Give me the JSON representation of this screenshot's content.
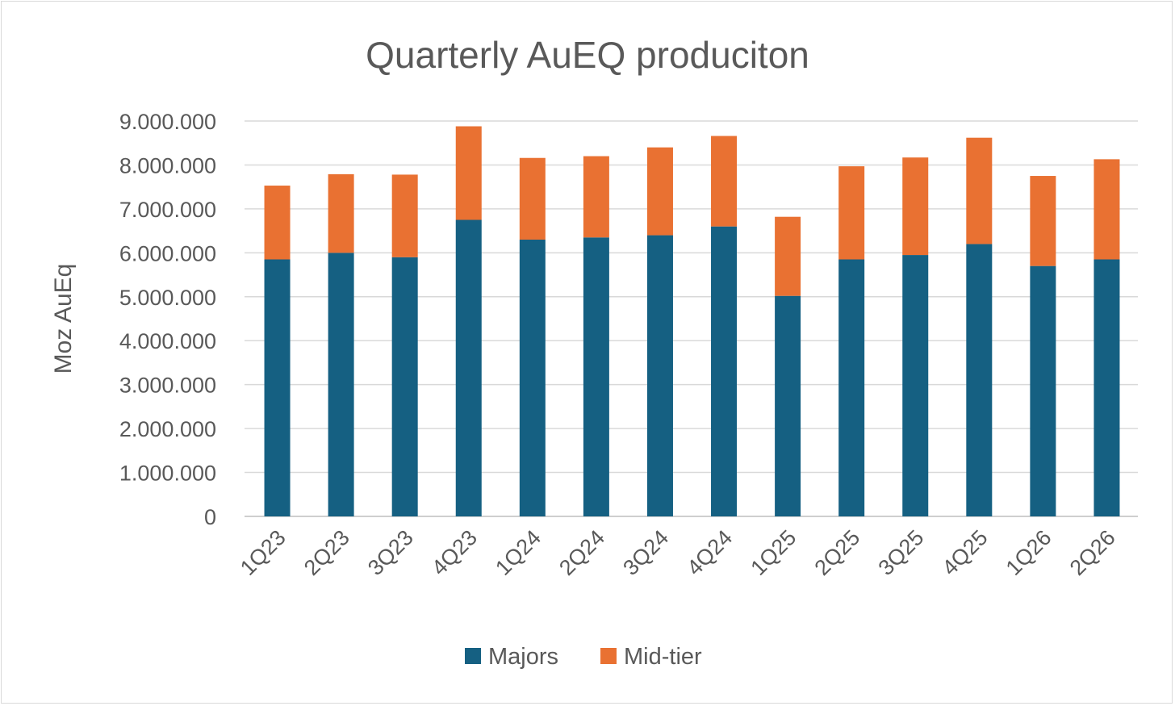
{
  "chart_data": {
    "type": "bar",
    "stacked": true,
    "title": "Quarterly AuEQ produciton",
    "xlabel": "",
    "ylabel": "Moz AuEq",
    "ylim": [
      0,
      9000000
    ],
    "yticks": [
      0,
      1000000,
      2000000,
      3000000,
      4000000,
      5000000,
      6000000,
      7000000,
      8000000,
      9000000
    ],
    "ytick_labels": [
      "0",
      "1.000.000",
      "2.000.000",
      "3.000.000",
      "4.000.000",
      "5.000.000",
      "6.000.000",
      "7.000.000",
      "8.000.000",
      "9.000.000"
    ],
    "grid": true,
    "legend_position": "bottom",
    "categories": [
      "1Q23",
      "2Q23",
      "3Q23",
      "4Q23",
      "1Q24",
      "2Q24",
      "3Q24",
      "4Q24",
      "1Q25",
      "2Q25",
      "3Q25",
      "4Q25",
      "1Q26",
      "2Q26"
    ],
    "series": [
      {
        "name": "Majors",
        "color": "#156082",
        "values": [
          5850000,
          6000000,
          5900000,
          6750000,
          6300000,
          6350000,
          6400000,
          6600000,
          5020000,
          5850000,
          5950000,
          6200000,
          5700000,
          5850000
        ]
      },
      {
        "name": "Mid-tier",
        "color": "#E97132",
        "values": [
          1680000,
          1790000,
          1880000,
          2130000,
          1860000,
          1850000,
          2000000,
          2060000,
          1800000,
          2120000,
          2220000,
          2420000,
          2050000,
          2280000
        ]
      }
    ]
  }
}
